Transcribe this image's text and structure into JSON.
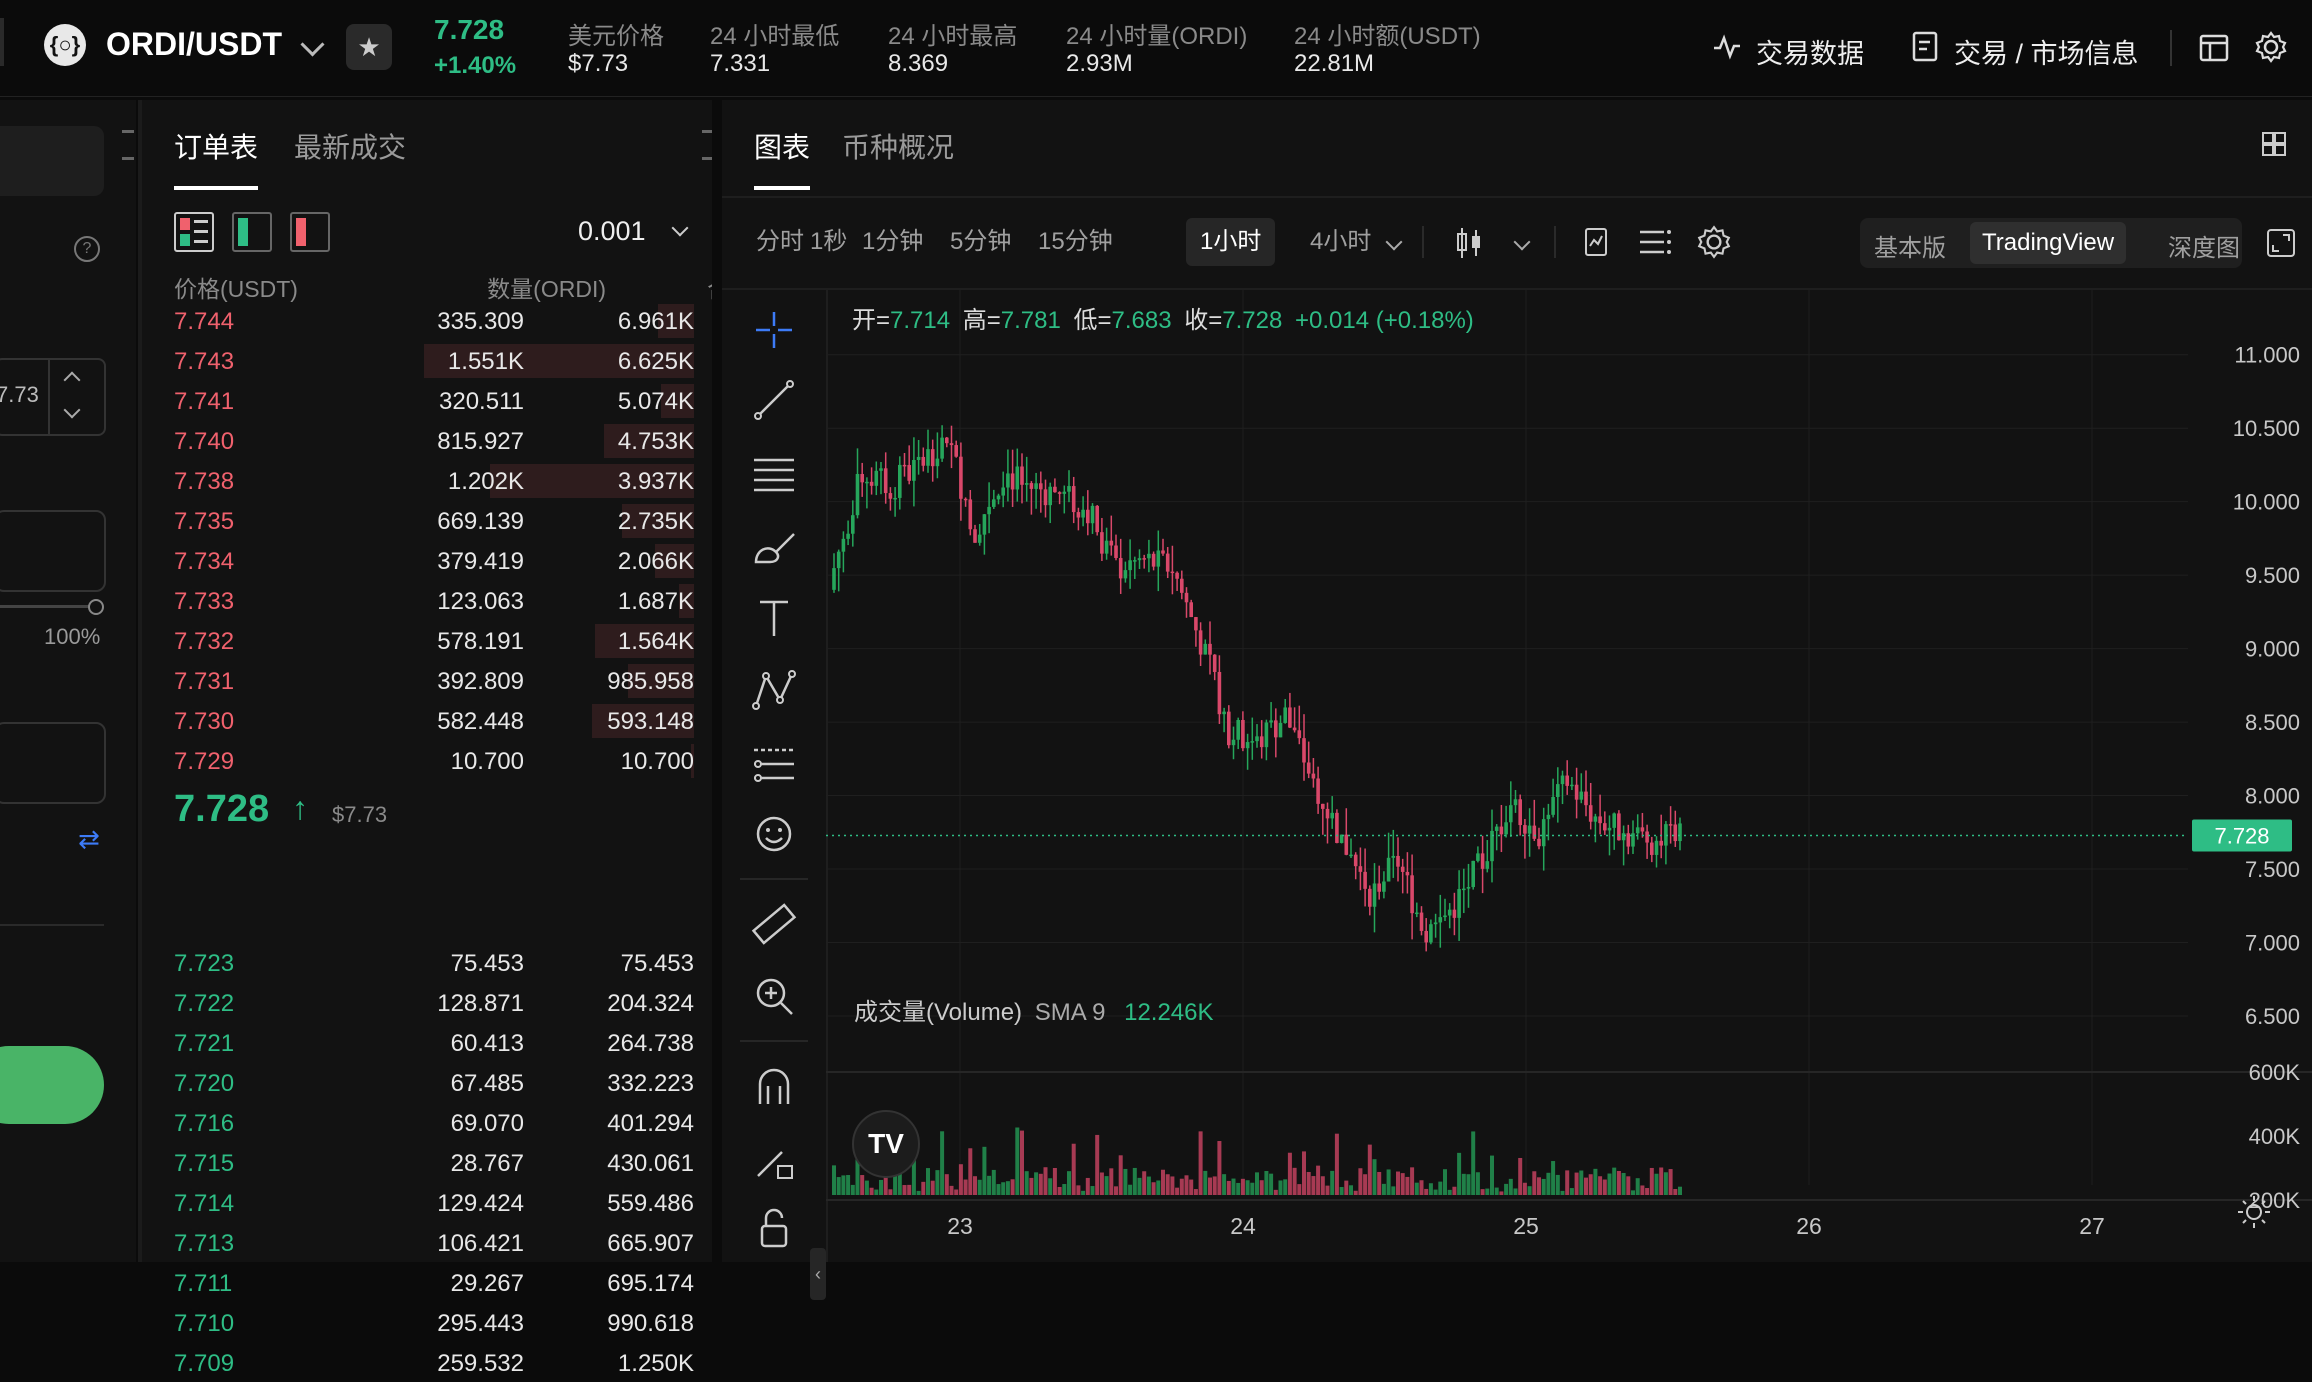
{
  "header": {
    "pair": "ORDI/USDT",
    "last_price": "7.728",
    "change_pct": "+1.40%",
    "stats": [
      {
        "label": "美元价格",
        "value": "$7.73"
      },
      {
        "label": "24 小时最低",
        "value": "7.331"
      },
      {
        "label": "24 小时最高",
        "value": "8.369"
      },
      {
        "label": "24 小时量(ORDI)",
        "value": "2.93M"
      },
      {
        "label": "24 小时额(USDT)",
        "value": "22.81M"
      }
    ],
    "trade_data_label": "交易数据",
    "market_info_label": "交易 / 市场信息"
  },
  "left_panel": {
    "price_input_value": "7.73",
    "slider_pct_label": "100%"
  },
  "orderbook": {
    "tabs": [
      "订单表",
      "最新成交"
    ],
    "precision": "0.001",
    "columns": [
      "价格(USDT)",
      "数量(ORDI)",
      "合计(ORDI)"
    ],
    "asks": [
      {
        "price": "7.744",
        "qty": "335.309",
        "total": "6.961K",
        "depth": 0.12
      },
      {
        "price": "7.743",
        "qty": "1.551K",
        "total": "6.625K",
        "depth": 0.9
      },
      {
        "price": "7.741",
        "qty": "320.511",
        "total": "5.074K",
        "depth": 0.11
      },
      {
        "price": "7.740",
        "qty": "815.927",
        "total": "4.753K",
        "depth": 0.3
      },
      {
        "price": "7.738",
        "qty": "1.202K",
        "total": "3.937K",
        "depth": 0.68
      },
      {
        "price": "7.735",
        "qty": "669.139",
        "total": "2.735K",
        "depth": 0.24
      },
      {
        "price": "7.734",
        "qty": "379.419",
        "total": "2.066K",
        "depth": 0.13
      },
      {
        "price": "7.733",
        "qty": "123.063",
        "total": "1.687K",
        "depth": 0.05
      },
      {
        "price": "7.732",
        "qty": "578.191",
        "total": "1.564K",
        "depth": 0.33
      },
      {
        "price": "7.731",
        "qty": "392.809",
        "total": "985.958",
        "depth": 0.22
      },
      {
        "price": "7.730",
        "qty": "582.448",
        "total": "593.148",
        "depth": 0.34
      },
      {
        "price": "7.729",
        "qty": "10.700",
        "total": "10.700",
        "depth": 0.01
      }
    ],
    "mid_price": "7.728",
    "mid_usd": "$7.73",
    "bids": [
      {
        "price": "7.723",
        "qty": "75.453",
        "total": "75.453"
      },
      {
        "price": "7.722",
        "qty": "128.871",
        "total": "204.324"
      },
      {
        "price": "7.721",
        "qty": "60.413",
        "total": "264.738"
      },
      {
        "price": "7.720",
        "qty": "67.485",
        "total": "332.223"
      },
      {
        "price": "7.716",
        "qty": "69.070",
        "total": "401.294"
      },
      {
        "price": "7.715",
        "qty": "28.767",
        "total": "430.061"
      },
      {
        "price": "7.714",
        "qty": "129.424",
        "total": "559.486"
      },
      {
        "price": "7.713",
        "qty": "106.421",
        "total": "665.907"
      },
      {
        "price": "7.711",
        "qty": "29.267",
        "total": "695.174"
      },
      {
        "price": "7.710",
        "qty": "295.443",
        "total": "990.618"
      },
      {
        "price": "7.709",
        "qty": "259.532",
        "total": "1.250K"
      }
    ]
  },
  "chart_panel": {
    "tabs": [
      "图表",
      "币种概况"
    ],
    "timeframes": [
      "分时",
      "1秒",
      "1分钟",
      "5分钟",
      "15分钟",
      "1小时",
      "4小时"
    ],
    "active_timeframe": "1小时",
    "views": [
      "基本版",
      "TradingView",
      "深度图"
    ],
    "active_view": "TradingView",
    "ohlc": {
      "open_label": "开=",
      "open": "7.714",
      "high_label": "高=",
      "high": "7.781",
      "low_label": "低=",
      "low": "7.683",
      "close_label": "收=",
      "close": "7.728",
      "change": "+0.014 (+0.18%)"
    },
    "price_ticks": [
      "11.000",
      "10.500",
      "10.000",
      "9.500",
      "9.000",
      "8.500",
      "8.000",
      "7.500",
      "7.000",
      "6.500"
    ],
    "current_price_tag": "7.728",
    "volume_title": "成交量(Volume)",
    "volume_sma": "SMA 9",
    "volume_sma_value": "12.246K",
    "volume_ticks": [
      "600K",
      "400K",
      "200K"
    ],
    "date_ticks": [
      "23",
      "24",
      "25",
      "26",
      "27"
    ]
  },
  "colors": {
    "up": "#2ebd85",
    "down": "#f0616d",
    "candle_up": "#26a65b",
    "candle_down": "#d9486a"
  },
  "chart_data": {
    "type": "candlestick",
    "x_ticks": [
      "23",
      "24",
      "25",
      "26",
      "27"
    ],
    "ylim": [
      6.35,
      11.25
    ],
    "last_close": 7.728,
    "volume_ylim": [
      0,
      600000
    ],
    "ohlc_summary": {
      "open": 7.714,
      "high": 7.781,
      "low": 7.683,
      "close": 7.728
    }
  }
}
